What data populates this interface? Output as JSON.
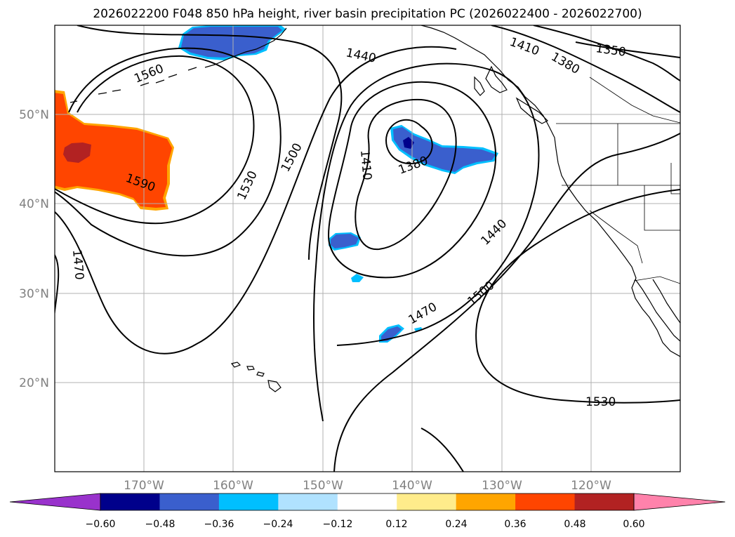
{
  "title": "2026022200 F048 850 hPa height, river basin precipitation PC (2026022400 - 2026022700)",
  "map": {
    "lon_ticks": [
      "170°W",
      "160°W",
      "150°W",
      "140°W",
      "130°W",
      "120°W"
    ],
    "lat_ticks": [
      "50°N",
      "40°N",
      "30°N",
      "20°N"
    ],
    "extent": {
      "lon_min": -180,
      "lon_max": -110,
      "lat_min": 10,
      "lat_max": 60
    },
    "gridlines": true
  },
  "contours": {
    "levels": [
      1350,
      1380,
      1410,
      1440,
      1470,
      1500,
      1530,
      1560,
      1590
    ],
    "labels": [
      "1440",
      "1410",
      "1380",
      "1350",
      "1560",
      "1590",
      "1530",
      "1500",
      "1410",
      "1380",
      "1470",
      "1440",
      "1500",
      "1470",
      "1530"
    ]
  },
  "colorbar": {
    "ticks": [
      "−0.60",
      "−0.48",
      "−0.36",
      "−0.24",
      "−0.12",
      "0.12",
      "0.24",
      "0.36",
      "0.48",
      "0.60"
    ],
    "colors": [
      "#9932cc",
      "#00008b",
      "#3a5fcd",
      "#00bfff",
      "#b0e2ff",
      "#ffffff",
      "#ffec8b",
      "#ffa500",
      "#ff4500",
      "#b22222",
      "#ff82ab"
    ]
  }
}
